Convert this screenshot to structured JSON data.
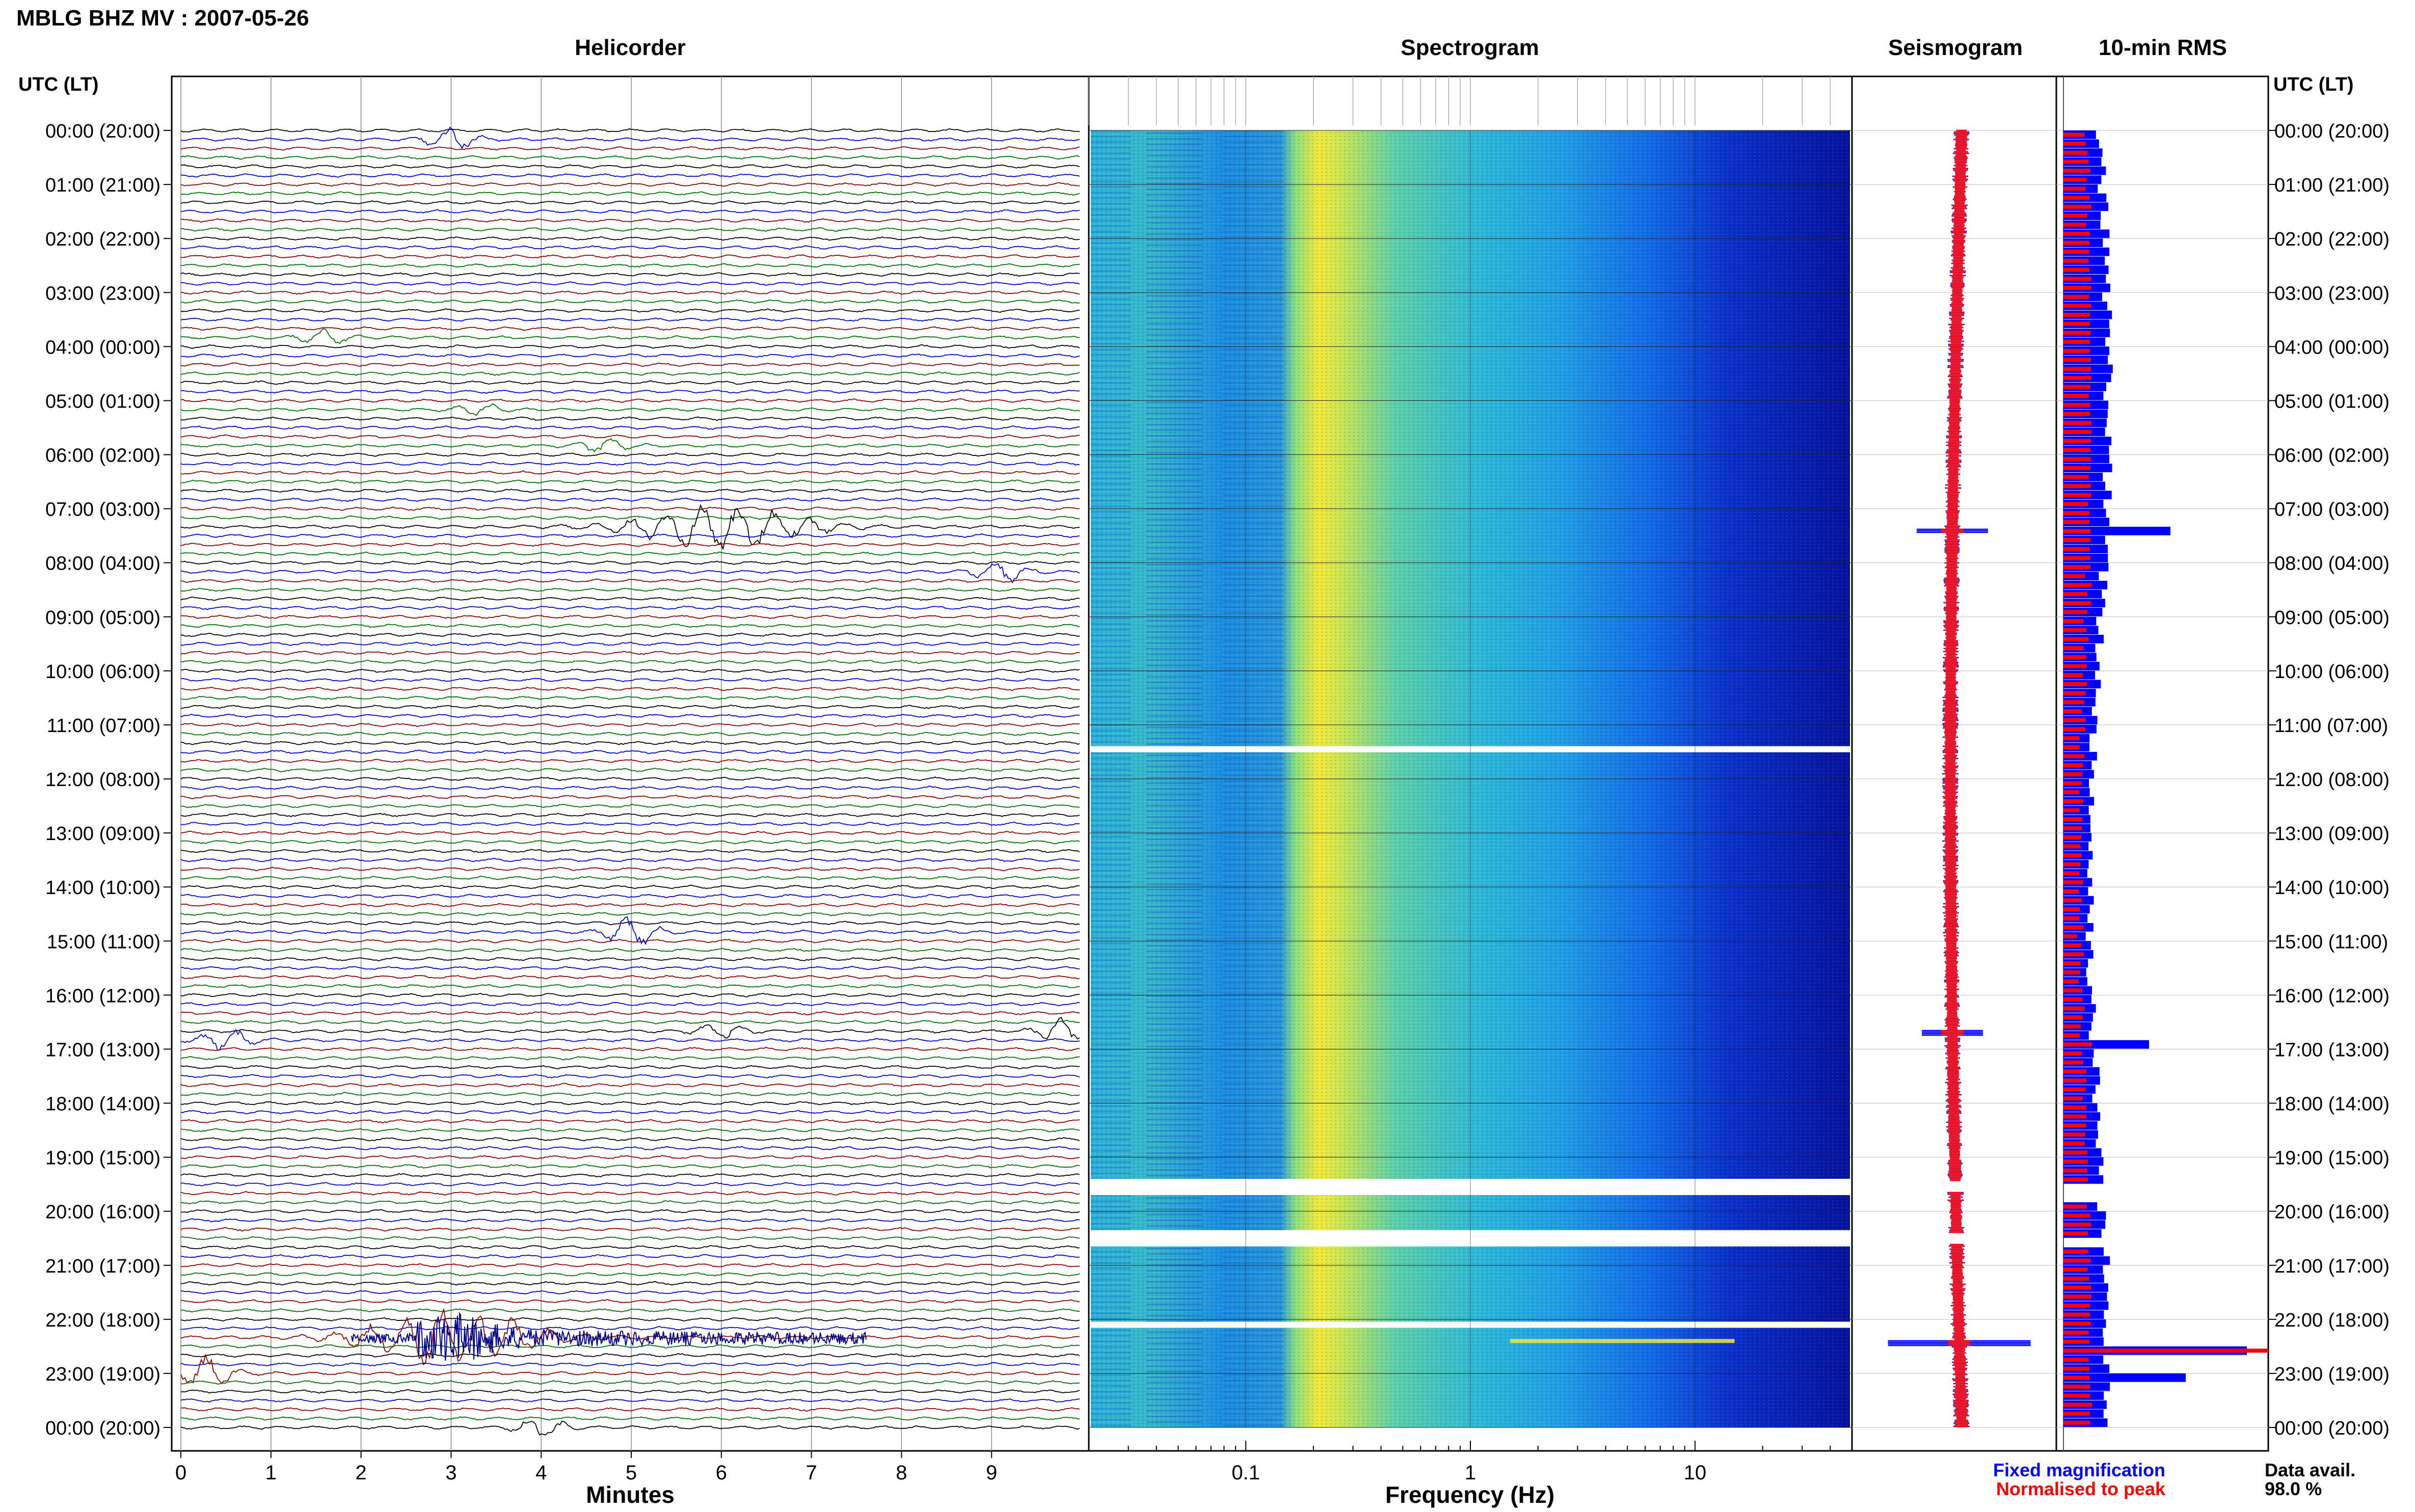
{
  "header": {
    "title": "MBLG BHZ MV : 2007-05-26",
    "utc_label_left": "UTC (LT)",
    "utc_label_right": "UTC (LT)"
  },
  "footer": {
    "legend_fixed": "Fixed magnification",
    "legend_normalised": "Normalised to peak",
    "data_avail_label": "Data avail.",
    "data_avail_value": "98.0 %"
  },
  "colors": {
    "trace_cycle": [
      "#000000",
      "#0000cc",
      "#8b0000",
      "#007000"
    ],
    "fixed": "#0000ff",
    "normalised": "#ff0000"
  },
  "chart_data": [
    {
      "type": "line",
      "title": "Helicorder",
      "xlabel": "Minutes",
      "x_ticks": [
        "0",
        "1",
        "2",
        "3",
        "4",
        "5",
        "6",
        "7",
        "8",
        "9"
      ],
      "xlim": [
        0,
        10
      ],
      "y_ticks": [
        "00:00 (20:00)",
        "01:00 (21:00)",
        "02:00 (22:00)",
        "03:00 (23:00)",
        "04:00 (00:00)",
        "05:00 (01:00)",
        "06:00 (02:00)",
        "07:00 (03:00)",
        "08:00 (04:00)",
        "09:00 (05:00)",
        "10:00 (06:00)",
        "11:00 (07:00)",
        "12:00 (08:00)",
        "13:00 (09:00)",
        "14:00 (10:00)",
        "15:00 (11:00)",
        "16:00 (12:00)",
        "17:00 (13:00)",
        "18:00 (14:00)",
        "19:00 (15:00)",
        "20:00 (16:00)",
        "21:00 (17:00)",
        "22:00 (18:00)",
        "23:00 (19:00)",
        "00:00 (20:00)"
      ],
      "traces_per_hour": 6,
      "grid": true,
      "events": [
        {
          "hour": 0.2,
          "minute": 3.0,
          "amp": 3
        },
        {
          "hour": 3.8,
          "minute": 1.6,
          "amp": 2
        },
        {
          "hour": 5.2,
          "minute": 3.3,
          "amp": 1.5
        },
        {
          "hour": 5.8,
          "minute": 4.7,
          "amp": 2
        },
        {
          "hour": 7.3,
          "minute": 6.0,
          "amp": 6
        },
        {
          "hour": 8.2,
          "minute": 9.1,
          "amp": 3
        },
        {
          "hour": 14.8,
          "minute": 5.0,
          "amp": 4
        },
        {
          "hour": 16.6,
          "minute": 6.0,
          "amp": 2
        },
        {
          "hour": 16.8,
          "minute": 0.5,
          "amp": 3
        },
        {
          "hour": 16.7,
          "minute": 9.8,
          "amp": 3.5
        },
        {
          "hour": 22.3,
          "minute": 3.0,
          "amp": 8
        },
        {
          "hour": 23.0,
          "minute": 0.3,
          "amp": 5
        },
        {
          "hour": 24.0,
          "minute": 4.0,
          "amp": 2.5
        }
      ]
    },
    {
      "type": "heatmap",
      "title": "Spectrogram",
      "xlabel": "Frequency (Hz)",
      "x_scale": "log",
      "x_ticks": [
        "0.1",
        "1",
        "10"
      ],
      "x_tick_values": [
        0.1,
        1,
        10
      ],
      "xlim": [
        0.02,
        50
      ],
      "peak_band_hz": [
        0.18,
        0.5
      ],
      "gaps_hours": [
        11.45,
        19.55,
        20.5,
        22.1
      ]
    },
    {
      "type": "line",
      "title": "Seismogram",
      "series": [
        {
          "name": "Fixed magnification"
        },
        {
          "name": "Normalised to peak"
        }
      ]
    },
    {
      "type": "bar",
      "title": "10-min RMS",
      "series": [
        {
          "name": "Fixed magnification"
        },
        {
          "name": "Normalised to peak"
        }
      ],
      "peaks": [
        {
          "hour": 7.4,
          "value": 3.5
        },
        {
          "hour": 22.5,
          "value": 6.0
        },
        {
          "hour": 23.0,
          "value": 4.0
        },
        {
          "hour": 16.9,
          "value": 2.8
        }
      ]
    }
  ]
}
